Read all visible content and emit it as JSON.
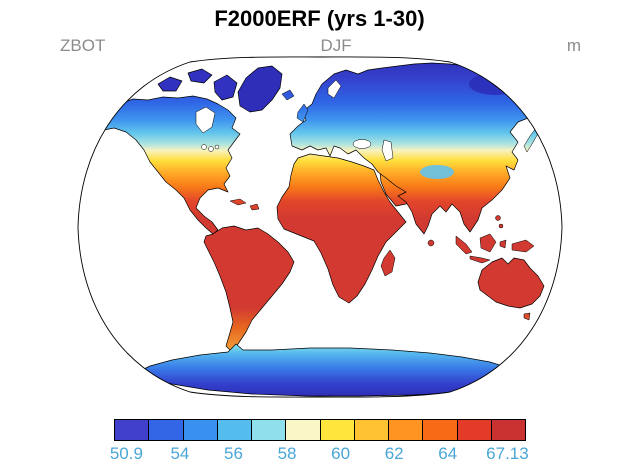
{
  "header": {
    "title": "F2000ERF (yrs 1-30)",
    "left_label": "ZBOT",
    "center_label": "DJF",
    "right_label": "m"
  },
  "colorbar": {
    "label_color": "#4aa6d6",
    "min": 50.9,
    "max": 67.13,
    "colors": [
      "#4040cc",
      "#3366e6",
      "#3990ee",
      "#55bcee",
      "#8fe0ec",
      "#faf6c8",
      "#ffe53c",
      "#ffc233",
      "#ff9422",
      "#f86a16",
      "#e33b28",
      "#c93230"
    ],
    "ticks": [
      {
        "label": "50.9",
        "pos": 0.03
      },
      {
        "label": "54",
        "pos": 0.16
      },
      {
        "label": "56",
        "pos": 0.29
      },
      {
        "label": "58",
        "pos": 0.42
      },
      {
        "label": "60",
        "pos": 0.55
      },
      {
        "label": "62",
        "pos": 0.68
      },
      {
        "label": "64",
        "pos": 0.81
      },
      {
        "label": "67.13",
        "pos": 0.955
      }
    ]
  },
  "chart_data": {
    "type": "heatmap",
    "title": "F2000ERF (yrs 1-30)",
    "variable": "ZBOT",
    "season": "DJF",
    "units": "m",
    "projection": "robinson-style global map",
    "value_range": [
      50.9,
      67.13
    ],
    "colorbar_tick_labels": [
      "50.9",
      "54",
      "56",
      "58",
      "60",
      "62",
      "64",
      "67.13"
    ],
    "palette": [
      "#4040cc",
      "#3366e6",
      "#3990ee",
      "#55bcee",
      "#8fe0ec",
      "#faf6c8",
      "#ffe53c",
      "#ffc233",
      "#ff9422",
      "#f86a16",
      "#e33b28",
      "#c93230"
    ],
    "pattern": "Low values (blues, ~51-56 m) over high northern latitudes (Greenland, Arctic Canada, Siberia) and Antarctica; mid values (yellow-orange, ~58-62 m) across mid-latitudes (US, Mediterranean, Central Asia); high values (reds, ~64-67 m) over tropics and subtropics (South America, Africa, South Asia, Australia)."
  }
}
